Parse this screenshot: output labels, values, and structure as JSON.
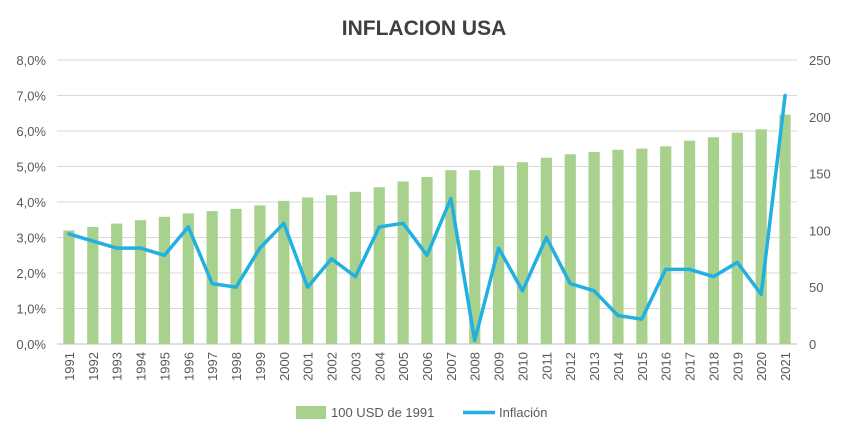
{
  "chart_data": {
    "type": "bar",
    "title": "INFLACION USA",
    "categories": [
      "1991",
      "1992",
      "1993",
      "1994",
      "1995",
      "1996",
      "1997",
      "1998",
      "1999",
      "2000",
      "2001",
      "2002",
      "2003",
      "2004",
      "2005",
      "2006",
      "2007",
      "2008",
      "2009",
      "2010",
      "2011",
      "2012",
      "2013",
      "2014",
      "2015",
      "2016",
      "2017",
      "2018",
      "2019",
      "2020",
      "2021"
    ],
    "series": [
      {
        "name": "100 USD de 1991",
        "type": "bar",
        "axis": "right",
        "color": "#a9d18e",
        "values": [
          100,
          103,
          106,
          109,
          112,
          115,
          117,
          119,
          122,
          126,
          129,
          131,
          134,
          138,
          143,
          147,
          153,
          153,
          157,
          160,
          164,
          167,
          169,
          171,
          172,
          174,
          179,
          182,
          186,
          189,
          202
        ]
      },
      {
        "name": "Inflación",
        "type": "line",
        "axis": "left",
        "color": "#22b0e0",
        "values": [
          3.1,
          2.9,
          2.7,
          2.7,
          2.5,
          3.3,
          1.7,
          1.6,
          2.7,
          3.4,
          1.6,
          2.4,
          1.9,
          3.3,
          3.4,
          2.5,
          4.1,
          0.1,
          2.7,
          1.5,
          3.0,
          1.7,
          1.5,
          0.8,
          0.7,
          2.1,
          2.1,
          1.9,
          2.3,
          1.4,
          7.0
        ]
      }
    ],
    "y_left": {
      "ticks": [
        "0,0%",
        "1,0%",
        "2,0%",
        "3,0%",
        "4,0%",
        "5,0%",
        "6,0%",
        "7,0%",
        "8,0%"
      ],
      "min": 0,
      "max": 8
    },
    "y_right": {
      "ticks": [
        "0",
        "50",
        "100",
        "150",
        "200",
        "250"
      ],
      "min": 0,
      "max": 250
    },
    "grid": true,
    "legend": "bottom",
    "xlabel": "",
    "ylabel": ""
  }
}
